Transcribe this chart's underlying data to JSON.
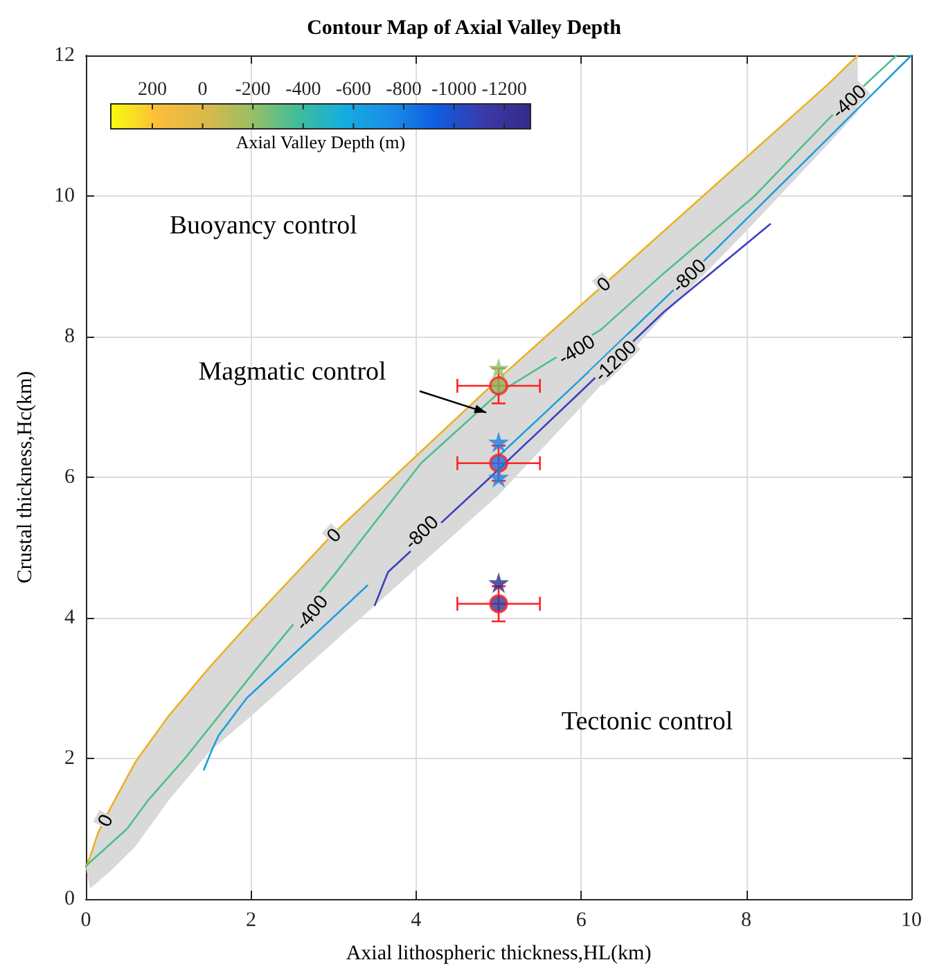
{
  "chart_data": {
    "type": "line",
    "title": "Contour Map of Axial Valley Depth",
    "xlabel": "Axial lithospheric thickness,HL(km)",
    "ylabel": "Crustal thickness,Hc(km)",
    "clabel": "Axial Valley Depth (m)",
    "xlim": [
      0,
      10
    ],
    "ylim": [
      0,
      12
    ],
    "xticks": [
      0,
      2,
      4,
      6,
      8,
      10
    ],
    "yticks": [
      0,
      2,
      4,
      6,
      8,
      10,
      12
    ],
    "grid": true,
    "marker": "none",
    "line_style": "solid",
    "series": [
      {
        "color": "#edb120",
        "x": [
          0,
          0.05,
          0.15,
          0.3,
          0.6,
          1,
          1.5,
          2,
          3,
          4,
          5,
          6,
          7,
          8,
          9,
          9.35
        ],
        "values": [
          0.45,
          0.6,
          0.95,
          1.3,
          1.95,
          2.6,
          3.3,
          3.95,
          5.2,
          6.3,
          7.4,
          8.45,
          9.5,
          10.55,
          11.6,
          12
        ],
        "lower": [
          0.45,
          0.15,
          0.25,
          0.4,
          0.75,
          1.4,
          2.1,
          2.6,
          3.65,
          4.7,
          5.75,
          7.0,
          8.3,
          9.5,
          10.75,
          11.2
        ],
        "upper": [
          0.45,
          0.6,
          0.95,
          1.3,
          1.95,
          2.6,
          3.3,
          3.95,
          5.2,
          6.3,
          7.4,
          8.45,
          9.5,
          10.55,
          11.6,
          12
        ]
      },
      {
        "color": "#4dbf8a",
        "x": [
          0,
          0.5,
          0.75,
          1.2,
          2.05,
          3,
          4.06,
          5,
          6.24,
          7,
          8.1,
          9,
          9.82
        ],
        "values": [
          0.47,
          1.0,
          1.4,
          2.0,
          3.25,
          4.6,
          6.2,
          7.2,
          8.1,
          8.9,
          10,
          11.1,
          12
        ]
      },
      {
        "color": "#1a9fdc",
        "x": [
          1.43,
          1.53,
          1.61,
          1.95,
          3.41,
          4,
          5,
          6,
          7.63,
          8.8,
          10
        ],
        "values": [
          1.84,
          2.13,
          2.33,
          2.86,
          4.46,
          null,
          6.3,
          7.4,
          9.24,
          10.6,
          12
        ]
      },
      {
        "color": "#3c40c0",
        "x": [
          3.5,
          3.66,
          4.9,
          5.97,
          7,
          8.29
        ],
        "values": [
          4.18,
          4.65,
          6.0,
          7.19,
          8.35,
          9.6
        ]
      },
      {
        "type": "scatter",
        "marker": "circle",
        "color": "#ff2020",
        "x": [
          5,
          5,
          5
        ],
        "values": [
          7.3,
          6.2,
          4.2
        ],
        "colors": [
          "#8db55a",
          "#1f6fe0",
          "#2e3a9a"
        ],
        "errors": [
          0.25,
          0.25,
          0.25
        ],
        "xerrors": [
          0.5,
          0.5,
          0.5
        ]
      },
      {
        "type": "scatter",
        "marker": "star",
        "x": [
          5,
          5,
          5,
          5
        ],
        "values": [
          7.55,
          6.5,
          6.0,
          4.5
        ],
        "colors": [
          "#8cc26a",
          "#1e7fe0",
          "#1e7fe0",
          "#2c2a8a"
        ]
      }
    ],
    "annotations": [
      {
        "text": "0",
        "x": 6.27,
        "y": 8.75
      },
      {
        "text": "0",
        "x": 3.0,
        "y": 5.18
      },
      {
        "text": "0",
        "x": 0.23,
        "y": 1.12
      },
      {
        "text": "-400",
        "x": 2.73,
        "y": 4.08
      },
      {
        "text": "-400",
        "x": 5.94,
        "y": 7.82
      },
      {
        "text": "-400",
        "x": 9.24,
        "y": 11.35
      },
      {
        "text": "-800",
        "x": 4.06,
        "y": 5.22
      },
      {
        "text": "-800",
        "x": 7.3,
        "y": 8.87
      },
      {
        "text": "-1200",
        "x": 6.41,
        "y": 7.66
      },
      "Buoyancy control",
      {
        "text": "Magmatic control",
        "x": 4.85,
        "y": 6.92
      },
      "Tectonic control",
      "200",
      "0",
      "-200",
      "-400",
      "-600",
      "-800",
      "-1000",
      "-1200"
    ]
  }
}
